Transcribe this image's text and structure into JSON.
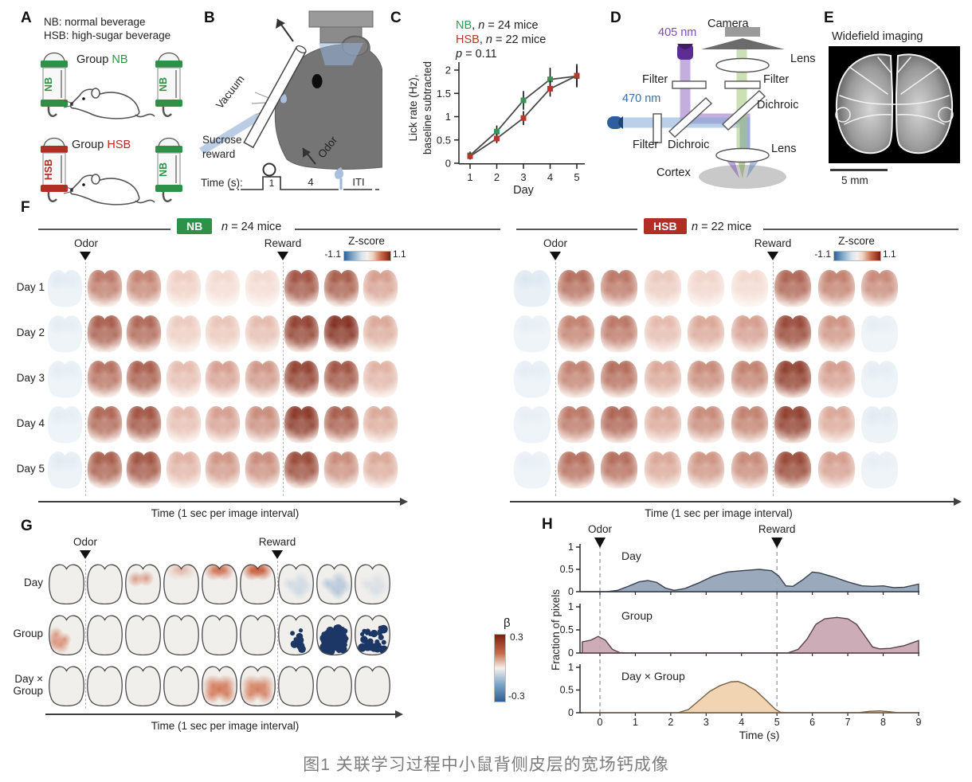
{
  "caption": "图1 关联学习过程中小鼠背侧皮层的宽场钙成像",
  "colors": {
    "nb_green": "#2e9148",
    "hsb_red": "#b02e24",
    "warm": "#a93726",
    "navy": "#1c3766",
    "day_fill": "#90a0b6",
    "day_stroke": "#39414f",
    "group_fill": "#c6a4af",
    "group_stroke": "#5c4048",
    "daygroup_fill": "#f0d0ab",
    "daygroup_stroke": "#776044",
    "purple_405": "#7d4bb5",
    "blue_470": "#3c6ea5"
  },
  "panelA": {
    "label": "A",
    "def1": "NB: normal beverage",
    "def2": "HSB: high-sugar beverage",
    "group_prefix": "Group ",
    "nb": "NB",
    "hsb": "HSB",
    "bottle_nb": "NB",
    "bottle_hsb": "HSB"
  },
  "panelB": {
    "label": "B",
    "vacuum": "Vacuum",
    "sucrose1": "Sucrose",
    "sucrose2": "reward",
    "odor": "Odor",
    "time_prefix": "Time (s):",
    "t1": "1",
    "t4": "4",
    "iti": "ITI"
  },
  "panelC": {
    "label": "C",
    "leg1_name": "NB",
    "leg1_mid": ", ",
    "leg1_n": "n",
    "leg1_rest": " = 24 mice",
    "leg2_name": "HSB",
    "leg2_mid": ", ",
    "leg2_n": "n",
    "leg2_rest": " = 22 mice",
    "p_name": "p",
    "p_rest": " = 0.11",
    "ylabel1": "Lick rate (Hz),",
    "ylabel2": "baseline subtracted",
    "xlabel": "Day"
  },
  "panelD": {
    "label": "D",
    "camera": "Camera",
    "lens_top": "Lens",
    "filter_left": "Filter",
    "filter_right": "Filter",
    "nm405": "405 nm",
    "nm470": "470 nm",
    "dichroic_right": "Dichroic",
    "filter_bottom": "Filter",
    "dichroic_bottom": "Dichroic",
    "lens_bottom": "Lens",
    "cortex": "Cortex"
  },
  "panelE": {
    "label": "E",
    "title": "Widefield imaging",
    "scalebar": "5 mm"
  },
  "panelF": {
    "label": "F",
    "odor": "Odor",
    "reward": "Reward",
    "zscore": "Z-score",
    "zmin": "-1.1",
    "zmax": "1.1",
    "nb_badge": "NB",
    "nb_n": "n",
    "nb_n_rest": " = 24 mice",
    "hsb_badge": "HSB",
    "hsb_n": "n",
    "hsb_n_rest": " = 22 mice",
    "days": [
      "Day 1",
      "Day 2",
      "Day 3",
      "Day 4",
      "Day 5"
    ],
    "time_label": "Time (1 sec per image interval)"
  },
  "panelG": {
    "label": "G",
    "odor": "Odor",
    "reward": "Reward",
    "beta": "β",
    "bmax": "0.3",
    "bmin": "-0.3",
    "row1": "Day",
    "row2": "Group",
    "row3a": "Day ×",
    "row3b": "Group",
    "time_label": "Time (1 sec per image interval)"
  },
  "panelH": {
    "label": "H",
    "odor": "Odor",
    "reward": "Reward",
    "ylabel": "Fraction of pixels",
    "xlabel": "Time (s)",
    "titles": [
      "Day",
      "Group",
      "Day × Group"
    ]
  },
  "chart_data": [
    {
      "type": "line",
      "panel": "C",
      "id": "lick-rate",
      "categories": [
        1,
        2,
        3,
        4,
        5
      ],
      "xlabel": "Day",
      "ylabel": "Lick rate (Hz), baseline subtracted",
      "ylim": [
        0,
        2
      ],
      "yticks": [
        0,
        0.5,
        1,
        1.5,
        2
      ],
      "p_value": "p = 0.11",
      "series": [
        {
          "name": "NB, n = 24 mice",
          "color": "#3d9257",
          "values": [
            0.17,
            0.68,
            1.35,
            1.8,
            1.87
          ],
          "errors": [
            0.08,
            0.13,
            0.2,
            0.25,
            0.22
          ]
        },
        {
          "name": "HSB, n = 22 mice",
          "color": "#b5382c",
          "values": [
            0.15,
            0.53,
            0.97,
            1.6,
            1.88
          ],
          "errors": [
            0.07,
            0.1,
            0.15,
            0.17,
            0.25
          ]
        }
      ]
    },
    {
      "type": "area",
      "panel": "H",
      "id": "fraction-day",
      "name": "Day",
      "fill": "#90a0b6",
      "stroke": "#39414f",
      "xlim": [
        -0.5,
        9
      ],
      "ylim": [
        0,
        1
      ],
      "yticks": [
        0,
        0.5,
        1
      ],
      "xticks": [
        0,
        1,
        2,
        3,
        4,
        5,
        6,
        7,
        8,
        9
      ],
      "odor_x": 0,
      "reward_x": 5,
      "points": [
        [
          -0.5,
          0
        ],
        [
          0.2,
          0
        ],
        [
          0.5,
          0.03
        ],
        [
          0.8,
          0.12
        ],
        [
          1.1,
          0.22
        ],
        [
          1.35,
          0.25
        ],
        [
          1.6,
          0.21
        ],
        [
          1.85,
          0.08
        ],
        [
          2.1,
          0.03
        ],
        [
          2.4,
          0.07
        ],
        [
          2.8,
          0.2
        ],
        [
          3.2,
          0.35
        ],
        [
          3.6,
          0.44
        ],
        [
          4,
          0.47
        ],
        [
          4.5,
          0.5
        ],
        [
          4.85,
          0.47
        ],
        [
          5.05,
          0.35
        ],
        [
          5.25,
          0.13
        ],
        [
          5.45,
          0.12
        ],
        [
          5.7,
          0.25
        ],
        [
          6,
          0.44
        ],
        [
          6.2,
          0.42
        ],
        [
          6.6,
          0.33
        ],
        [
          7,
          0.22
        ],
        [
          7.4,
          0.13
        ],
        [
          7.7,
          0.12
        ],
        [
          8,
          0.13
        ],
        [
          8.3,
          0.09
        ],
        [
          8.6,
          0.1
        ],
        [
          9,
          0.17
        ]
      ]
    },
    {
      "type": "area",
      "panel": "H",
      "id": "fraction-group",
      "name": "Group",
      "fill": "#c6a4af",
      "stroke": "#5c4048",
      "xlim": [
        -0.5,
        9
      ],
      "ylim": [
        0,
        1
      ],
      "yticks": [
        0,
        0.5,
        1
      ],
      "points": [
        [
          -0.5,
          0.24
        ],
        [
          -0.25,
          0.28
        ],
        [
          -0.05,
          0.36
        ],
        [
          0.15,
          0.28
        ],
        [
          0.35,
          0.08
        ],
        [
          0.55,
          0.01
        ],
        [
          0.8,
          0
        ],
        [
          5.3,
          0
        ],
        [
          5.6,
          0.08
        ],
        [
          5.85,
          0.3
        ],
        [
          6.1,
          0.62
        ],
        [
          6.35,
          0.74
        ],
        [
          6.7,
          0.77
        ],
        [
          7,
          0.74
        ],
        [
          7.25,
          0.62
        ],
        [
          7.5,
          0.35
        ],
        [
          7.7,
          0.13
        ],
        [
          7.9,
          0.09
        ],
        [
          8.2,
          0.1
        ],
        [
          8.6,
          0.16
        ],
        [
          9,
          0.27
        ]
      ]
    },
    {
      "type": "area",
      "panel": "H",
      "id": "fraction-day-group",
      "name": "Day × Group",
      "fill": "#f0d0ab",
      "stroke": "#776044",
      "xlim": [
        -0.5,
        9
      ],
      "ylim": [
        0,
        1
      ],
      "yticks": [
        0,
        0.5,
        1
      ],
      "points": [
        [
          -0.5,
          0
        ],
        [
          2.2,
          0
        ],
        [
          2.5,
          0.07
        ],
        [
          2.8,
          0.27
        ],
        [
          3.1,
          0.47
        ],
        [
          3.4,
          0.6
        ],
        [
          3.7,
          0.68
        ],
        [
          3.9,
          0.69
        ],
        [
          4.1,
          0.63
        ],
        [
          4.4,
          0.49
        ],
        [
          4.7,
          0.27
        ],
        [
          4.95,
          0.08
        ],
        [
          5.1,
          0.01
        ],
        [
          5.3,
          0
        ],
        [
          7.3,
          0
        ],
        [
          7.6,
          0.03
        ],
        [
          7.9,
          0.04
        ],
        [
          8.2,
          0.02
        ],
        [
          8.4,
          0
        ],
        [
          9,
          0
        ]
      ]
    },
    {
      "type": "heatmap",
      "panel": "F",
      "id": "nb-grid",
      "group": "NB",
      "rows": [
        "Day 1",
        "Day 2",
        "Day 3",
        "Day 4",
        "Day 5"
      ],
      "images_per_row": 9,
      "odor_after_image": 1,
      "reward_after_image": 6,
      "zlabel": "Z-score",
      "zlim": [
        -1.1,
        1.1
      ],
      "values": [
        [
          -0.15,
          0.55,
          0.5,
          0.1,
          0.04,
          0.04,
          0.75,
          0.7,
          0.35
        ],
        [
          -0.12,
          0.7,
          0.65,
          0.12,
          0.15,
          0.2,
          0.85,
          0.95,
          0.3
        ],
        [
          -0.12,
          0.6,
          0.7,
          0.2,
          0.35,
          0.4,
          0.85,
          0.75,
          0.25
        ],
        [
          -0.12,
          0.65,
          0.75,
          0.2,
          0.35,
          0.45,
          0.9,
          0.7,
          0.3
        ],
        [
          -0.15,
          0.7,
          0.75,
          0.25,
          0.4,
          0.45,
          0.8,
          0.45,
          0.3
        ]
      ]
    },
    {
      "type": "heatmap",
      "panel": "F",
      "id": "hsb-grid",
      "group": "HSB",
      "rows": [
        "Day 1",
        "Day 2",
        "Day 3",
        "Day 4",
        "Day 5"
      ],
      "images_per_row": 9,
      "odor_after_image": 1,
      "reward_after_image": 6,
      "zlabel": "Z-score",
      "zlim": [
        -1.1,
        1.1
      ],
      "values": [
        [
          -0.2,
          0.6,
          0.55,
          0.12,
          0.06,
          0.04,
          0.65,
          0.5,
          0.45
        ],
        [
          -0.1,
          0.5,
          0.55,
          0.2,
          0.3,
          0.35,
          0.8,
          0.4,
          -0.1
        ],
        [
          -0.12,
          0.5,
          0.6,
          0.3,
          0.45,
          0.5,
          0.85,
          0.35,
          -0.12
        ],
        [
          -0.1,
          0.55,
          0.65,
          0.3,
          0.45,
          0.5,
          0.85,
          0.3,
          -0.15
        ],
        [
          -0.1,
          0.6,
          0.6,
          0.3,
          0.4,
          0.45,
          0.8,
          0.35,
          -0.1
        ]
      ]
    },
    {
      "type": "heatmap",
      "panel": "G",
      "id": "beta-grid",
      "rows": [
        "Day",
        "Group",
        "Day × Group"
      ],
      "images_per_row": 9,
      "odor_after_image": 1,
      "reward_after_image": 6,
      "blabel": "β",
      "blim": [
        -0.3,
        0.3
      ],
      "cells": [
        [
          {
            "p": "plain",
            "v": 0
          },
          {
            "p": "plain",
            "v": 0.03
          },
          {
            "p": "warm-spots",
            "v": 0.35
          },
          {
            "p": "warm-top",
            "v": 0.15
          },
          {
            "p": "warm-top",
            "v": 0.45
          },
          {
            "p": "warm-top",
            "v": 0.6
          },
          {
            "p": "cool-spots",
            "v": 0.18
          },
          {
            "p": "cool-spots",
            "v": 0.35
          },
          {
            "p": "cool-spots",
            "v": 0.12
          }
        ],
        [
          {
            "p": "warm-bottom",
            "v": 0.4
          },
          {
            "p": "plain",
            "v": 0
          },
          {
            "p": "plain",
            "v": 0
          },
          {
            "p": "plain",
            "v": 0
          },
          {
            "p": "plain",
            "v": 0
          },
          {
            "p": "plain",
            "v": 0
          },
          {
            "p": "navy",
            "v": 0.12
          },
          {
            "p": "navy",
            "v": 0.95
          },
          {
            "p": "navy",
            "v": 0.5
          }
        ],
        [
          {
            "p": "plain",
            "v": 0
          },
          {
            "p": "plain",
            "v": 0
          },
          {
            "p": "plain",
            "v": 0
          },
          {
            "p": "plain",
            "v": 0
          },
          {
            "p": "warm-mid",
            "v": 0.55
          },
          {
            "p": "warm-mid",
            "v": 0.5
          },
          {
            "p": "plain",
            "v": 0
          },
          {
            "p": "plain",
            "v": 0
          },
          {
            "p": "plain",
            "v": 0.02
          }
        ]
      ]
    }
  ]
}
